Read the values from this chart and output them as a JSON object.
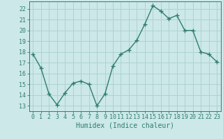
{
  "x": [
    0,
    1,
    2,
    3,
    4,
    5,
    6,
    7,
    8,
    9,
    10,
    11,
    12,
    13,
    14,
    15,
    16,
    17,
    18,
    19,
    20,
    21,
    22,
    23
  ],
  "y": [
    17.8,
    16.5,
    14.1,
    13.1,
    14.2,
    15.1,
    15.3,
    15.0,
    13.0,
    14.1,
    16.7,
    17.8,
    18.2,
    19.1,
    20.6,
    22.3,
    21.8,
    21.1,
    21.4,
    20.0,
    20.0,
    18.0,
    17.8,
    17.1
  ],
  "line_color": "#2e7d6e",
  "marker": "+",
  "marker_size": 4,
  "bg_color": "#cce8e8",
  "grid_color": "#aacece",
  "xlabel": "Humidex (Indice chaleur)",
  "ylim": [
    12.5,
    22.7
  ],
  "xlim": [
    -0.5,
    23.5
  ],
  "yticks": [
    13,
    14,
    15,
    16,
    17,
    18,
    19,
    20,
    21,
    22
  ],
  "xticks": [
    0,
    1,
    2,
    3,
    4,
    5,
    6,
    7,
    8,
    9,
    10,
    11,
    12,
    13,
    14,
    15,
    16,
    17,
    18,
    19,
    20,
    21,
    22,
    23
  ],
  "tick_color": "#2e7d6e",
  "axis_color": "#2e7d6e",
  "label_fontsize": 7,
  "tick_fontsize": 6,
  "linewidth": 1.0,
  "marker_color": "#2e7d6e",
  "marker_edge_width": 1.0
}
